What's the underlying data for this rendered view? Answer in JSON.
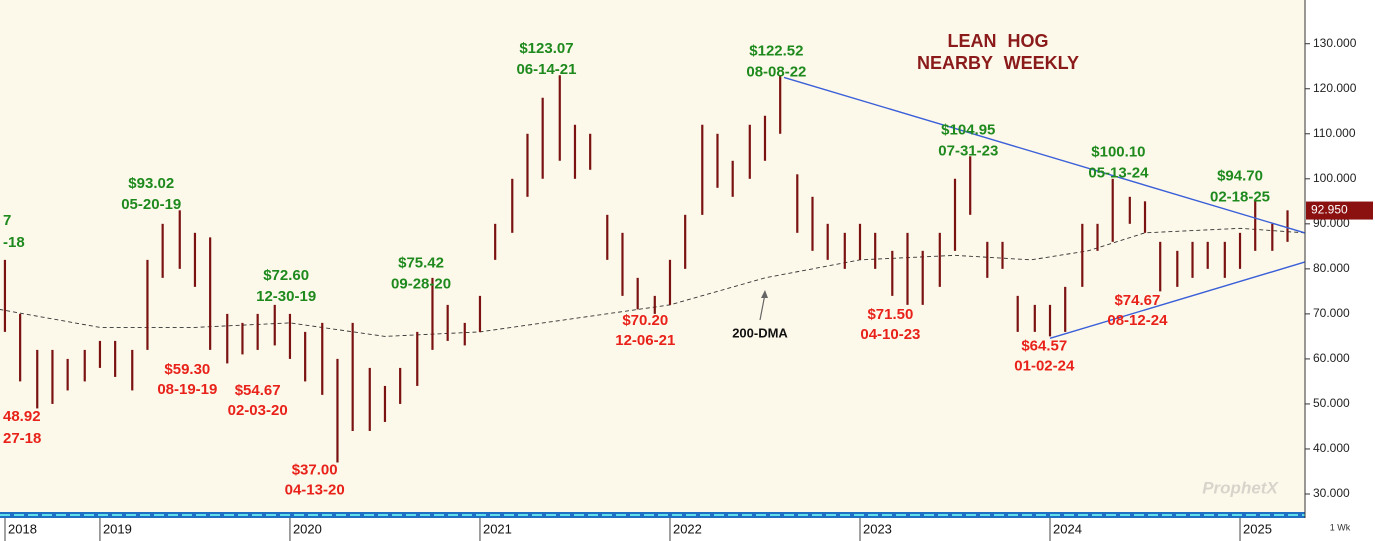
{
  "chart_data": {
    "type": "ohlc",
    "title": [
      "LEAN HOG",
      "NEARBY WEEKLY"
    ],
    "interval": "1 Wk",
    "watermark": "ProphetX",
    "ylim": [
      26,
      138.6
    ],
    "yticks": [
      {
        "value": 30,
        "label": "30.000"
      },
      {
        "value": 40,
        "label": "40.000"
      },
      {
        "value": 50,
        "label": "50.000"
      },
      {
        "value": 60,
        "label": "60.000"
      },
      {
        "value": 70,
        "label": "70.000"
      },
      {
        "value": 80,
        "label": "80.000"
      },
      {
        "value": 90,
        "label": "90.000"
      },
      {
        "value": 100,
        "label": "100.000"
      },
      {
        "value": 110,
        "label": "110.000"
      },
      {
        "value": 120,
        "label": "120.000"
      },
      {
        "value": 130,
        "label": "130.000"
      }
    ],
    "xlim": [
      2018.474,
      2025.342
    ],
    "xticks": [
      2018,
      2019,
      2020,
      2021,
      2022,
      2023,
      2024,
      2025
    ],
    "last": {
      "value": 92.95,
      "label": "92.950"
    },
    "bar_color": "#7a1212",
    "series": [
      {
        "name": "Lean Hog",
        "x": [
          2018.5,
          2018.58,
          2018.67,
          2018.75,
          2018.83,
          2018.92,
          2019.0,
          2019.08,
          2019.17,
          2019.25,
          2019.33,
          2019.42,
          2019.5,
          2019.58,
          2019.67,
          2019.75,
          2019.83,
          2019.92,
          2020.0,
          2020.08,
          2020.17,
          2020.25,
          2020.33,
          2020.42,
          2020.5,
          2020.58,
          2020.67,
          2020.75,
          2020.83,
          2020.92,
          2021.0,
          2021.08,
          2021.17,
          2021.25,
          2021.33,
          2021.42,
          2021.5,
          2021.58,
          2021.67,
          2021.75,
          2021.83,
          2021.92,
          2022.0,
          2022.08,
          2022.17,
          2022.25,
          2022.33,
          2022.42,
          2022.5,
          2022.58,
          2022.67,
          2022.75,
          2022.83,
          2022.92,
          2023.0,
          2023.08,
          2023.17,
          2023.25,
          2023.33,
          2023.42,
          2023.5,
          2023.58,
          2023.67,
          2023.75,
          2023.83,
          2023.92,
          2024.0,
          2024.08,
          2024.17,
          2024.25,
          2024.33,
          2024.42,
          2024.5,
          2024.58,
          2024.67,
          2024.75,
          2024.83,
          2024.92,
          2025.0,
          2025.08,
          2025.17,
          2025.25
        ],
        "high": [
          82,
          70,
          62,
          62,
          60,
          62,
          64,
          64,
          62,
          82,
          90,
          93,
          88,
          87,
          70,
          68,
          70,
          72,
          70,
          66,
          68,
          60,
          68,
          58,
          54,
          58,
          66,
          78,
          72,
          68,
          74,
          90,
          100,
          110,
          118,
          123,
          112,
          110,
          92,
          88,
          78,
          74,
          82,
          92,
          112,
          110,
          104,
          112,
          114,
          123,
          101,
          96,
          90,
          88,
          90,
          88,
          84,
          88,
          84,
          88,
          100,
          105,
          86,
          86,
          74,
          72,
          72,
          76,
          90,
          90,
          100,
          96,
          95,
          86,
          84,
          86,
          86,
          86,
          88,
          95,
          90,
          93
        ],
        "low": [
          66,
          55,
          49,
          50,
          53,
          55,
          58,
          56,
          53,
          62,
          78,
          80,
          76,
          62,
          59,
          61,
          62,
          63,
          60,
          55,
          52,
          37,
          44,
          44,
          46,
          50,
          54,
          62,
          64,
          63,
          66,
          82,
          88,
          96,
          100,
          104,
          100,
          102,
          82,
          74,
          71,
          70,
          72,
          80,
          92,
          98,
          96,
          100,
          104,
          110,
          88,
          84,
          82,
          80,
          82,
          80,
          74,
          72,
          72,
          76,
          84,
          92,
          78,
          80,
          66,
          66,
          65,
          66,
          76,
          84,
          86,
          90,
          88,
          75,
          76,
          78,
          80,
          78,
          80,
          84,
          84,
          86
        ]
      }
    ],
    "moving_average": {
      "name": "200-DMA",
      "x": [
        2018.47,
        2019.0,
        2019.5,
        2020.0,
        2020.5,
        2021.0,
        2021.5,
        2022.0,
        2022.5,
        2023.0,
        2023.5,
        2023.9,
        2024.2,
        2024.5,
        2025.0,
        2025.34
      ],
      "values": [
        71,
        67,
        67,
        68,
        65,
        66,
        69,
        72,
        78,
        82,
        83,
        82,
        84,
        88,
        89,
        88
      ]
    },
    "trendlines": [
      {
        "x": [
          2022.6,
          2025.34
        ],
        "values": [
          122.52,
          88
        ]
      },
      {
        "x": [
          2024.0,
          2025.34
        ],
        "values": [
          64.57,
          81.5
        ]
      }
    ],
    "annotations": [
      {
        "label": "$93.02",
        "date": "05-20-19",
        "value": 93.02,
        "x": 2019.27,
        "color": "#1e8a1e",
        "position": "above"
      },
      {
        "label": "$72.60",
        "date": "12-30-19",
        "value": 72.6,
        "x": 2019.98,
        "color": "#1e8a1e",
        "position": "above"
      },
      {
        "label": "$75.42",
        "date": "09-28-20",
        "value": 75.42,
        "x": 2020.69,
        "color": "#1e8a1e",
        "position": "above"
      },
      {
        "label": "$123.07",
        "date": "06-14-21",
        "value": 123.07,
        "x": 2021.35,
        "color": "#1e8a1e",
        "position": "above"
      },
      {
        "label": "$122.52",
        "date": "08-08-22",
        "value": 122.52,
        "x": 2022.56,
        "color": "#1e8a1e",
        "position": "above"
      },
      {
        "label": "$104.95",
        "date": "07-31-23",
        "value": 104.95,
        "x": 2023.57,
        "color": "#1e8a1e",
        "position": "above"
      },
      {
        "label": "$100.10",
        "date": "05-13-24",
        "value": 100.1,
        "x": 2024.36,
        "color": "#1e8a1e",
        "position": "above"
      },
      {
        "label": "$94.70",
        "date": "02-18-25",
        "value": 94.7,
        "x": 2025.0,
        "color": "#1e8a1e",
        "position": "above"
      },
      {
        "label": "$59.30",
        "date": "08-19-19",
        "value": 59.3,
        "x": 2019.46,
        "color": "#e8221a",
        "position": "below"
      },
      {
        "label": "$54.67",
        "date": "02-03-20",
        "value": 54.67,
        "x": 2019.83,
        "color": "#e8221a",
        "position": "below"
      },
      {
        "label": "$37.00",
        "date": "04-13-20",
        "value": 37.0,
        "x": 2020.13,
        "color": "#e8221a",
        "position": "below"
      },
      {
        "label": "$70.20",
        "date": "12-06-21",
        "value": 70.2,
        "x": 2021.87,
        "color": "#e8221a",
        "position": "below"
      },
      {
        "label": "$71.50",
        "date": "04-10-23",
        "value": 71.5,
        "x": 2023.16,
        "color": "#e8221a",
        "position": "below"
      },
      {
        "label": "$64.57",
        "date": "01-02-24",
        "value": 64.57,
        "x": 2023.97,
        "color": "#e8221a",
        "position": "below"
      },
      {
        "label": "$74.67",
        "date": "08-12-24",
        "value": 74.67,
        "x": 2024.46,
        "color": "#e8221a",
        "position": "below"
      }
    ],
    "edge_labels": [
      {
        "label": "7",
        "date": "-18"
      },
      {
        "label": "48.92",
        "date": "27-18"
      }
    ]
  }
}
